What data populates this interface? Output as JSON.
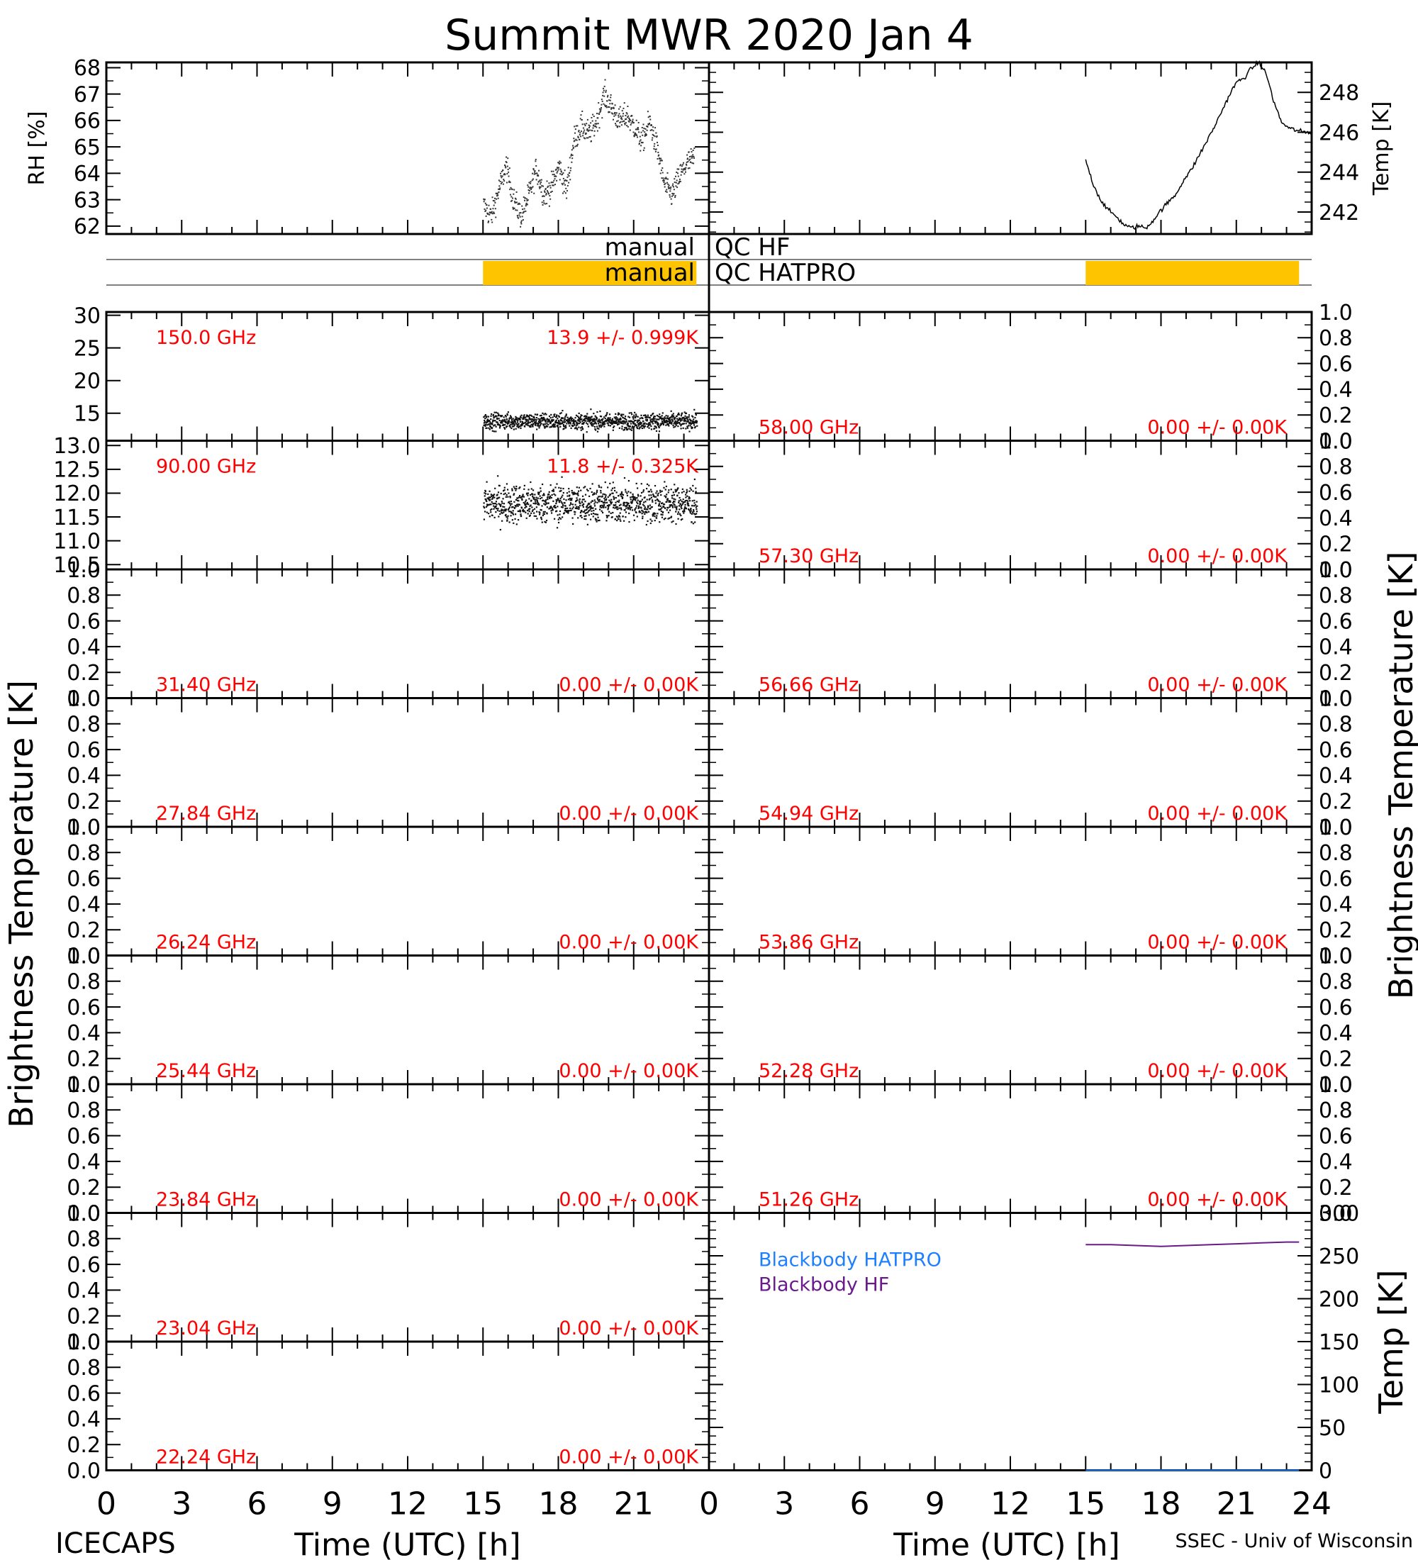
{
  "title": "Summit MWR 2020 Jan  4",
  "footer": {
    "left": "ICECAPS",
    "right": "SSEC - Univ of Wisconsin"
  },
  "x_axis": {
    "label": "Time (UTC) [h]",
    "ticks": [
      "0",
      "3",
      "6",
      "9",
      "12",
      "15",
      "18",
      "21",
      "24"
    ],
    "range": [
      0,
      24
    ]
  },
  "y_label_brightness": "Brightness Temperature [K]",
  "colors": {
    "label": "#ff0000",
    "qc_bar": "#ffc400",
    "blackbody_hatpro": "#1e7fff",
    "blackbody_hf": "#6a1a8a",
    "data": "#000000"
  },
  "qc_rows": [
    {
      "label_left": "manual",
      "label_right": "QC HF",
      "flagged": []
    },
    {
      "label_left": "manual",
      "label_right": "QC HATPRO",
      "flagged": [
        [
          15.0,
          23.5
        ]
      ]
    }
  ],
  "default_stat": "0.00 +/- 0.00K",
  "chart_data": [
    {
      "id": "rh",
      "type": "scatter",
      "ylabel": "RH [%]",
      "ylim": [
        61.7,
        68.2
      ],
      "yticks": [
        "62",
        "63",
        "64",
        "65",
        "66",
        "67",
        "68"
      ],
      "trend": {
        "x": [
          15.0,
          15.3,
          15.6,
          15.9,
          16.2,
          16.5,
          16.8,
          17.1,
          17.4,
          17.7,
          18.0,
          18.3,
          18.6,
          18.9,
          19.2,
          19.5,
          19.8,
          20.1,
          20.4,
          20.7,
          21.0,
          21.3,
          21.6,
          21.9,
          22.2,
          22.5,
          22.8,
          23.1,
          23.4
        ],
        "y": [
          62.8,
          62.4,
          63.4,
          64.3,
          63.0,
          62.4,
          63.2,
          64.2,
          63.2,
          63.5,
          64.3,
          63.4,
          65.3,
          65.8,
          65.5,
          66.0,
          67.0,
          66.5,
          66.0,
          66.2,
          65.8,
          65.2,
          66.0,
          65.0,
          63.6,
          63.2,
          63.9,
          64.4,
          64.6
        ]
      },
      "spread": 0.7
    },
    {
      "id": "temp",
      "type": "line",
      "ylabel": "Temp [K]",
      "ylim": [
        240.9,
        249.5
      ],
      "yticks": [
        "242",
        "244",
        "246",
        "248"
      ],
      "x": [
        15.0,
        15.3,
        15.6,
        15.9,
        16.2,
        16.5,
        16.8,
        17.1,
        17.4,
        17.7,
        18.0,
        18.3,
        18.6,
        18.9,
        19.2,
        19.5,
        19.8,
        20.1,
        20.4,
        20.7,
        21.0,
        21.3,
        21.6,
        21.9,
        22.2,
        22.5,
        22.8,
        23.1,
        23.4,
        23.7,
        24.0
      ],
      "y": [
        244.6,
        243.4,
        242.6,
        242.1,
        241.8,
        241.4,
        241.2,
        241.3,
        241.2,
        241.6,
        242.1,
        242.5,
        242.9,
        243.6,
        244.1,
        244.8,
        245.5,
        246.2,
        247.0,
        247.8,
        248.5,
        248.7,
        249.2,
        249.5,
        248.9,
        247.5,
        246.5,
        246.2,
        246.1,
        246.0,
        246.0
      ]
    },
    {
      "id": "bt_150",
      "type": "scatter",
      "side": "left",
      "freq": "150.0 GHz",
      "stat": "13.9 +/- 0.999K",
      "ylim": [
        10.8,
        30.5
      ],
      "yticks": [
        "15",
        "20",
        "25",
        "30"
      ],
      "mean": 13.9,
      "std": 0.999,
      "x_start": 15.0,
      "x_end": 23.5
    },
    {
      "id": "bt_90",
      "type": "scatter",
      "side": "left",
      "freq": "90.00 GHz",
      "stat": "11.8 +/- 0.325K",
      "ylim": [
        10.4,
        13.1
      ],
      "yticks": [
        "10.5",
        "11.0",
        "11.5",
        "12.0",
        "12.5",
        "13.0"
      ],
      "mean": 11.8,
      "std": 0.325,
      "x_start": 15.0,
      "x_end": 23.5
    },
    {
      "id": "bt_31_40",
      "side": "left",
      "freq": "31.40 GHz"
    },
    {
      "id": "bt_27_84",
      "side": "left",
      "freq": "27.84 GHz"
    },
    {
      "id": "bt_26_24",
      "side": "left",
      "freq": "26.24 GHz"
    },
    {
      "id": "bt_25_44",
      "side": "left",
      "freq": "25.44 GHz"
    },
    {
      "id": "bt_23_84",
      "side": "left",
      "freq": "23.84 GHz"
    },
    {
      "id": "bt_23_04",
      "side": "left",
      "freq": "23.04 GHz"
    },
    {
      "id": "bt_22_24",
      "side": "left",
      "freq": "22.24 GHz"
    },
    {
      "id": "bt_58_00",
      "side": "right",
      "freq": "58.00 GHz"
    },
    {
      "id": "bt_57_30",
      "side": "right",
      "freq": "57.30 GHz"
    },
    {
      "id": "bt_56_66",
      "side": "right",
      "freq": "56.66 GHz"
    },
    {
      "id": "bt_54_94",
      "side": "right",
      "freq": "54.94 GHz"
    },
    {
      "id": "bt_53_86",
      "side": "right",
      "freq": "53.86 GHz"
    },
    {
      "id": "bt_52_28",
      "side": "right",
      "freq": "52.28 GHz"
    },
    {
      "id": "bt_51_26",
      "side": "right",
      "freq": "51.26 GHz"
    },
    {
      "id": "blackbody",
      "type": "line",
      "ylabel": "Temp [K]",
      "ylim": [
        0,
        300
      ],
      "yticks": [
        "0",
        "50",
        "100",
        "150",
        "200",
        "250",
        "300"
      ],
      "legend": [
        "Blackbody HATPRO",
        "Blackbody HF"
      ],
      "series": [
        {
          "name": "Blackbody HATPRO",
          "x": [
            15.0,
            23.5
          ],
          "y": [
            0,
            0
          ]
        },
        {
          "name": "Blackbody HF",
          "x": [
            15.0,
            16.0,
            17.0,
            18.0,
            19.0,
            20.0,
            21.0,
            22.0,
            23.0,
            23.5
          ],
          "y": [
            263,
            263,
            262,
            261,
            262,
            263,
            264,
            265,
            266,
            266
          ]
        }
      ]
    }
  ]
}
